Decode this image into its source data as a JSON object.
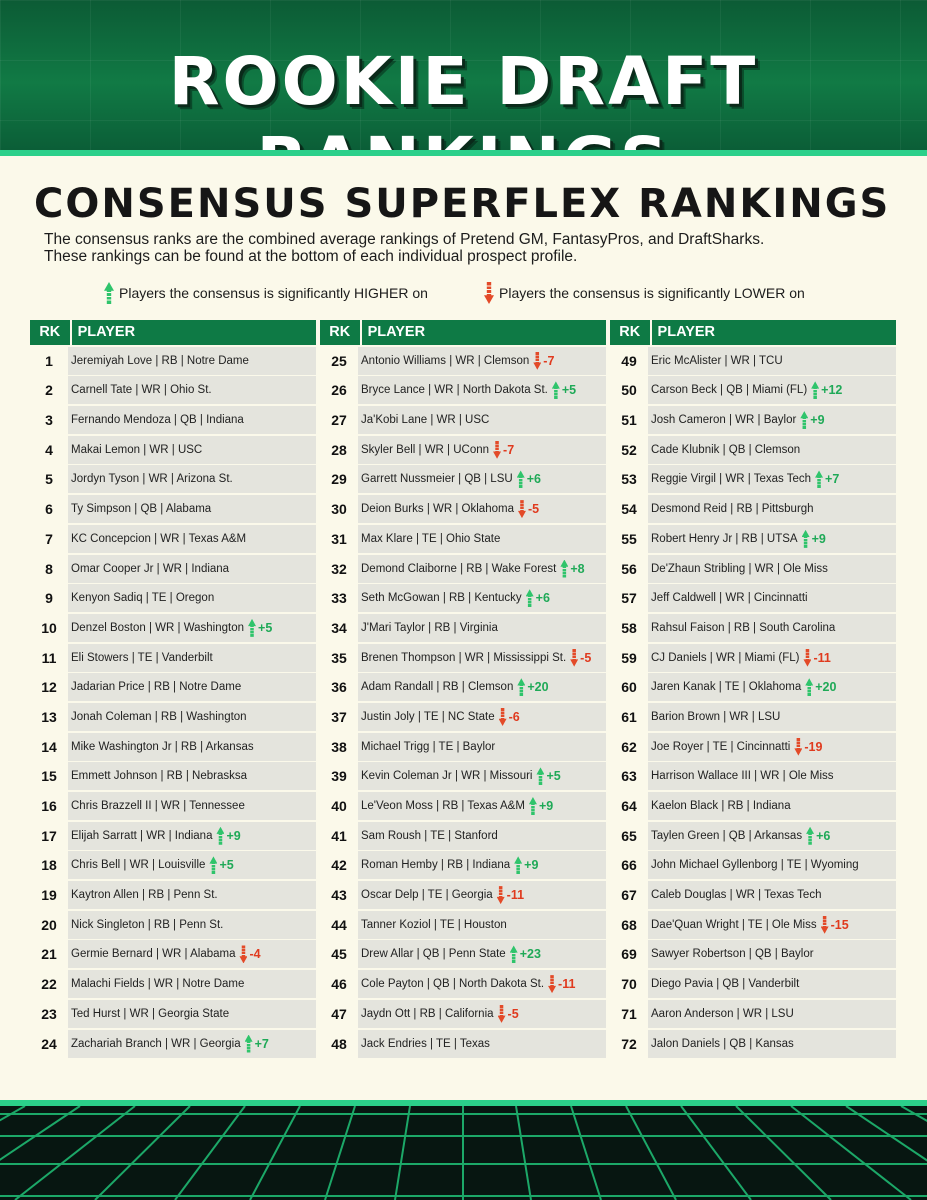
{
  "header": {
    "title": "ROOKIE DRAFT RANKINGS"
  },
  "section": {
    "title": "CONSENSUS SUPERFLEX RANKINGS",
    "desc_line1": "The consensus ranks are the combined average rankings of Pretend GM, FantasyPros, and DraftSharks.",
    "desc_line2": "These rankings can be found at the bottom of each individual prospect profile."
  },
  "legend": {
    "higher": "Players the consensus is significantly HIGHER on",
    "lower": "Players the consensus is significantly LOWER on"
  },
  "colors": {
    "green": "#0e7a45",
    "up": "#1fa957",
    "down": "#e03a1e"
  },
  "table": {
    "rk_label": "RK",
    "player_label": "PLAYER",
    "rows": [
      {
        "rk": "1",
        "player": "Jeremiyah Love | RB | Notre Dame",
        "change": ""
      },
      {
        "rk": "2",
        "player": "Carnell Tate | WR | Ohio St.",
        "change": ""
      },
      {
        "rk": "3",
        "player": "Fernando Mendoza | QB | Indiana",
        "change": ""
      },
      {
        "rk": "4",
        "player": "Makai Lemon | WR | USC",
        "change": ""
      },
      {
        "rk": "5",
        "player": "Jordyn Tyson | WR | Arizona St.",
        "change": ""
      },
      {
        "rk": "6",
        "player": "Ty Simpson | QB | Alabama",
        "change": ""
      },
      {
        "rk": "7",
        "player": "KC Concepcion | WR | Texas A&M",
        "change": ""
      },
      {
        "rk": "8",
        "player": "Omar Cooper Jr | WR | Indiana",
        "change": ""
      },
      {
        "rk": "9",
        "player": "Kenyon Sadiq | TE | Oregon",
        "change": ""
      },
      {
        "rk": "10",
        "player": "Denzel Boston | WR | Washington",
        "change": "+5"
      },
      {
        "rk": "11",
        "player": "Eli Stowers | TE | Vanderbilt",
        "change": ""
      },
      {
        "rk": "12",
        "player": "Jadarian Price | RB | Notre Dame",
        "change": ""
      },
      {
        "rk": "13",
        "player": "Jonah Coleman | RB | Washington",
        "change": ""
      },
      {
        "rk": "14",
        "player": "Mike Washington Jr | RB | Arkansas",
        "change": ""
      },
      {
        "rk": "15",
        "player": "Emmett Johnson | RB | Nebrasksa",
        "change": ""
      },
      {
        "rk": "16",
        "player": "Chris Brazzell II | WR | Tennessee",
        "change": ""
      },
      {
        "rk": "17",
        "player": "Elijah Sarratt | WR | Indiana",
        "change": "+9"
      },
      {
        "rk": "18",
        "player": "Chris Bell | WR | Louisville",
        "change": "+5"
      },
      {
        "rk": "19",
        "player": "Kaytron Allen | RB | Penn St.",
        "change": ""
      },
      {
        "rk": "20",
        "player": "Nick Singleton | RB | Penn St.",
        "change": ""
      },
      {
        "rk": "21",
        "player": "Germie Bernard | WR | Alabama",
        "change": "-4"
      },
      {
        "rk": "22",
        "player": "Malachi Fields | WR | Notre Dame",
        "change": ""
      },
      {
        "rk": "23",
        "player": "Ted Hurst | WR | Georgia State",
        "change": ""
      },
      {
        "rk": "24",
        "player": "Zachariah Branch | WR | Georgia",
        "change": "+7"
      },
      {
        "rk": "25",
        "player": "Antonio Williams | WR | Clemson",
        "change": "-7"
      },
      {
        "rk": "26",
        "player": "Bryce Lance | WR | North Dakota St.",
        "change": "+5"
      },
      {
        "rk": "27",
        "player": "Ja'Kobi Lane | WR | USC",
        "change": ""
      },
      {
        "rk": "28",
        "player": "Skyler Bell | WR | UConn",
        "change": "-7"
      },
      {
        "rk": "29",
        "player": "Garrett Nussmeier | QB | LSU",
        "change": "+6"
      },
      {
        "rk": "30",
        "player": "Deion Burks | WR | Oklahoma",
        "change": "-5"
      },
      {
        "rk": "31",
        "player": "Max Klare | TE | Ohio State",
        "change": ""
      },
      {
        "rk": "32",
        "player": "Demond Claiborne | RB | Wake Forest",
        "change": "+8"
      },
      {
        "rk": "33",
        "player": "Seth McGowan | RB | Kentucky",
        "change": "+6"
      },
      {
        "rk": "34",
        "player": "J'Mari Taylor | RB | Virginia",
        "change": ""
      },
      {
        "rk": "35",
        "player": "Brenen Thompson | WR | Mississippi St.",
        "change": "-5"
      },
      {
        "rk": "36",
        "player": "Adam Randall | RB | Clemson",
        "change": "+20"
      },
      {
        "rk": "37",
        "player": "Justin Joly | TE | NC State",
        "change": "-6"
      },
      {
        "rk": "38",
        "player": "Michael Trigg | TE | Baylor",
        "change": ""
      },
      {
        "rk": "39",
        "player": "Kevin Coleman Jr | WR | Missouri",
        "change": "+5"
      },
      {
        "rk": "40",
        "player": "Le'Veon Moss | RB | Texas A&M",
        "change": "+9"
      },
      {
        "rk": "41",
        "player": "Sam Roush | TE | Stanford",
        "change": ""
      },
      {
        "rk": "42",
        "player": "Roman Hemby | RB | Indiana",
        "change": "+9"
      },
      {
        "rk": "43",
        "player": "Oscar Delp | TE | Georgia",
        "change": "-11"
      },
      {
        "rk": "44",
        "player": "Tanner Koziol | TE | Houston",
        "change": ""
      },
      {
        "rk": "45",
        "player": "Drew Allar | QB | Penn State",
        "change": "+23"
      },
      {
        "rk": "46",
        "player": "Cole Payton | QB | North Dakota St.",
        "change": "-11"
      },
      {
        "rk": "47",
        "player": "Jaydn Ott | RB | California",
        "change": "-5"
      },
      {
        "rk": "48",
        "player": "Jack Endries | TE | Texas",
        "change": ""
      },
      {
        "rk": "49",
        "player": "Eric McAlister | WR | TCU",
        "change": ""
      },
      {
        "rk": "50",
        "player": "Carson Beck | QB | Miami (FL)",
        "change": "+12"
      },
      {
        "rk": "51",
        "player": "Josh Cameron | WR | Baylor",
        "change": "+9"
      },
      {
        "rk": "52",
        "player": "Cade Klubnik | QB | Clemson",
        "change": ""
      },
      {
        "rk": "53",
        "player": "Reggie Virgil | WR | Texas Tech",
        "change": "+7"
      },
      {
        "rk": "54",
        "player": "Desmond Reid | RB | Pittsburgh",
        "change": ""
      },
      {
        "rk": "55",
        "player": "Robert Henry Jr | RB | UTSA",
        "change": "+9"
      },
      {
        "rk": "56",
        "player": "De'Zhaun Stribling | WR | Ole Miss",
        "change": ""
      },
      {
        "rk": "57",
        "player": "Jeff Caldwell | WR | Cincinnatti",
        "change": ""
      },
      {
        "rk": "58",
        "player": "Rahsul Faison | RB | South Carolina",
        "change": ""
      },
      {
        "rk": "59",
        "player": "CJ Daniels | WR | Miami (FL)",
        "change": "-11"
      },
      {
        "rk": "60",
        "player": "Jaren Kanak | TE | Oklahoma",
        "change": "+20"
      },
      {
        "rk": "61",
        "player": "Barion Brown | WR | LSU",
        "change": ""
      },
      {
        "rk": "62",
        "player": "Joe Royer | TE | Cincinnatti",
        "change": "-19"
      },
      {
        "rk": "63",
        "player": "Harrison Wallace III | WR | Ole Miss",
        "change": ""
      },
      {
        "rk": "64",
        "player": "Kaelon Black | RB | Indiana",
        "change": ""
      },
      {
        "rk": "65",
        "player": "Taylen Green | QB | Arkansas",
        "change": "+6"
      },
      {
        "rk": "66",
        "player": "John Michael Gyllenborg | TE | Wyoming",
        "change": ""
      },
      {
        "rk": "67",
        "player": "Caleb Douglas | WR | Texas Tech",
        "change": ""
      },
      {
        "rk": "68",
        "player": "Dae'Quan Wright | TE | Ole Miss",
        "change": "-15"
      },
      {
        "rk": "69",
        "player": "Sawyer Robertson | QB | Baylor",
        "change": ""
      },
      {
        "rk": "70",
        "player": "Diego Pavia | QB | Vanderbilt",
        "change": ""
      },
      {
        "rk": "71",
        "player": "Aaron Anderson | WR | LSU",
        "change": ""
      },
      {
        "rk": "72",
        "player": "Jalon Daniels | QB | Kansas",
        "change": ""
      }
    ]
  }
}
